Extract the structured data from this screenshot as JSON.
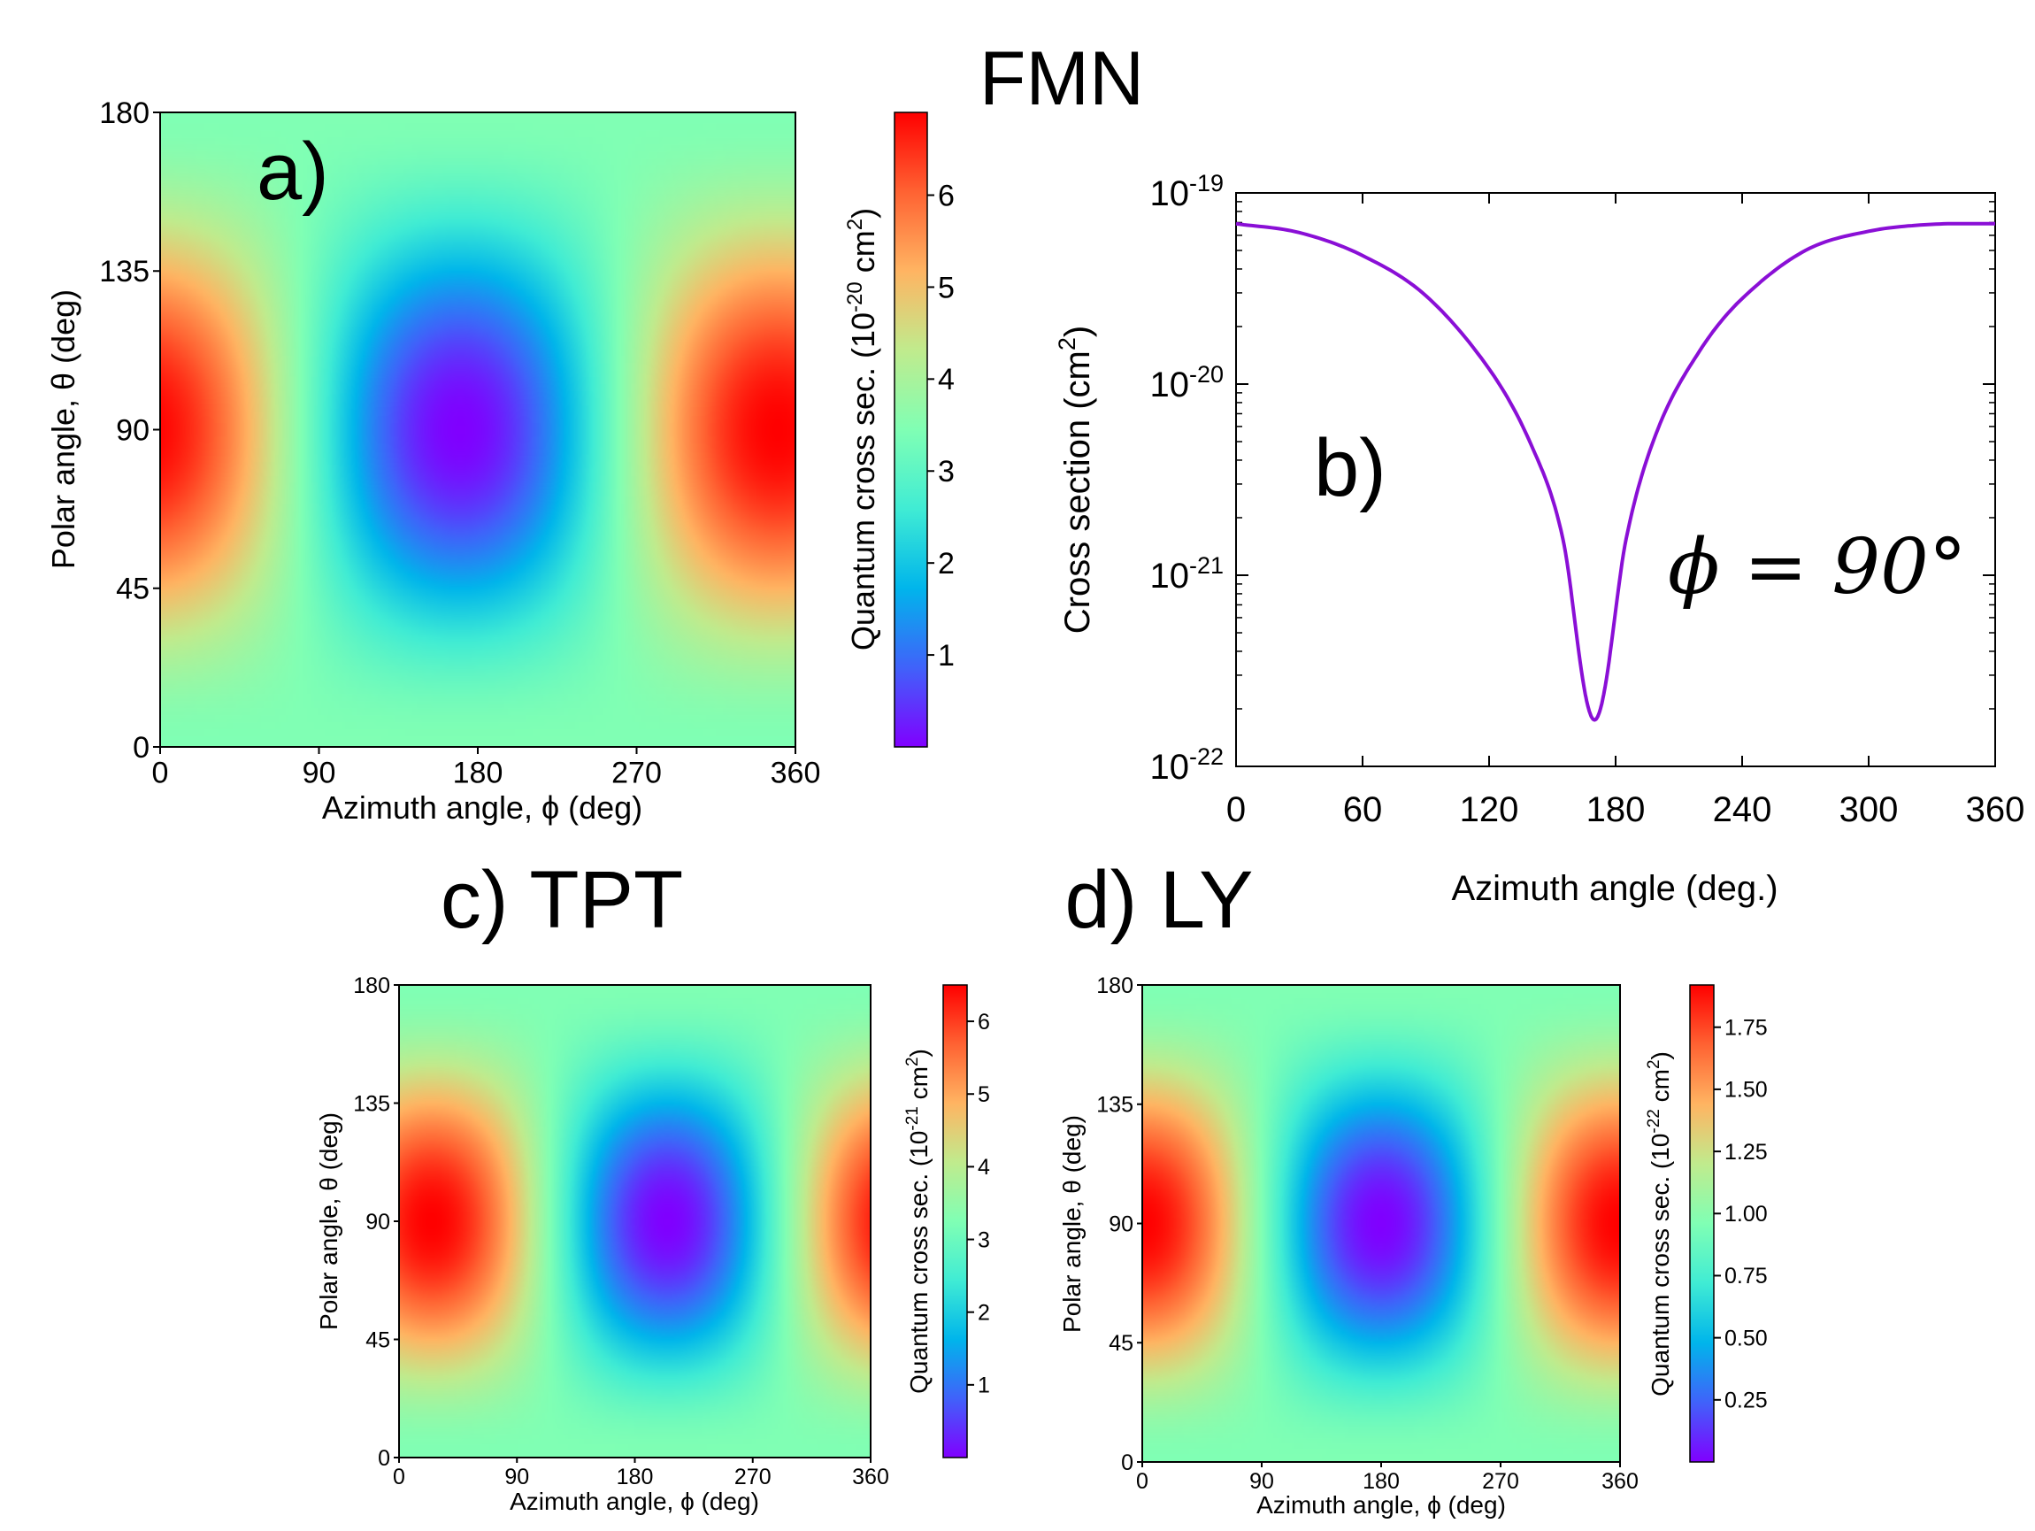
{
  "figure": {
    "main_title": "FMN"
  },
  "chart_data": [
    {
      "id": "a",
      "type": "heatmap",
      "panel_label": "a)",
      "title": "",
      "xlabel": "Azimuth angle, ϕ (deg)",
      "ylabel": "Polar angle, θ (deg)",
      "xlim": [
        0,
        360
      ],
      "ylim": [
        0,
        180
      ],
      "xticks": [
        0,
        90,
        180,
        270,
        360
      ],
      "yticks": [
        0,
        45,
        90,
        135,
        180
      ],
      "colorbar": {
        "label_main": "Quantum cross sec. (10",
        "label_exp": "-20",
        "label_mid": " cm",
        "label_exp2": "2",
        "label_end": ")",
        "range": [
          0,
          6.9
        ],
        "ticks": [
          "1",
          "2",
          "3",
          "4",
          "5",
          "6"
        ],
        "tick_values": [
          1,
          2,
          3,
          4,
          5,
          6
        ]
      },
      "model": {
        "min_phi": 170,
        "min_theta": 90,
        "max_value": 6.9,
        "baseline": 3.45
      }
    },
    {
      "id": "b",
      "type": "line",
      "panel_label": "b)",
      "annotation": "ϕ = 90°",
      "xlabel": "Azimuth angle (deg.)",
      "ylabel_main": "Cross section (cm",
      "ylabel_exp": "2",
      "ylabel_end": ")",
      "xlim": [
        0,
        360
      ],
      "ylim": [
        1e-22,
        1e-19
      ],
      "yscale": "log",
      "xticks": [
        "0",
        "60",
        "120",
        "180",
        "240",
        "300",
        "360"
      ],
      "xtick_values": [
        0,
        60,
        120,
        180,
        240,
        300,
        360
      ],
      "yticks": [
        {
          "base": "10",
          "exp": "-22",
          "value": -22
        },
        {
          "base": "10",
          "exp": "-21",
          "value": -21
        },
        {
          "base": "10",
          "exp": "-20",
          "value": -20
        },
        {
          "base": "10",
          "exp": "-19",
          "value": -19
        }
      ],
      "series": [
        {
          "name": "cross section",
          "color": "#8a0fd6",
          "x": [
            0,
            30,
            60,
            90,
            120,
            140,
            155,
            165,
            170,
            175,
            185,
            200,
            220,
            240,
            270,
            300,
            330,
            360
          ],
          "y": [
            6.9e-20,
            6.2e-20,
            4.7e-20,
            2.9e-20,
            1.2e-20,
            4.8e-21,
            1.55e-21,
            2.6e-22,
            1.75e-22,
            2.6e-22,
            1.55e-21,
            5.8e-21,
            1.5e-20,
            2.8e-20,
            5e-20,
            6.3e-20,
            6.85e-20,
            6.9e-20
          ]
        }
      ]
    },
    {
      "id": "c",
      "type": "heatmap",
      "title": "c) TPT",
      "xlabel": "Azimuth angle, ϕ (deg)",
      "ylabel": "Polar angle, θ (deg)",
      "xlim": [
        0,
        360
      ],
      "ylim": [
        0,
        180
      ],
      "xticks": [
        0,
        90,
        180,
        270,
        360
      ],
      "yticks": [
        0,
        45,
        90,
        135,
        180
      ],
      "colorbar": {
        "label_main": "Quantum cross sec. (10",
        "label_exp": "-21",
        "label_mid": " cm",
        "label_exp2": "2",
        "label_end": ")",
        "range": [
          0,
          6.5
        ],
        "ticks": [
          "1",
          "2",
          "3",
          "4",
          "5",
          "6"
        ],
        "tick_values": [
          1,
          2,
          3,
          4,
          5,
          6
        ]
      },
      "model": {
        "min_phi": 205,
        "min_theta": 90,
        "max_value": 6.5,
        "baseline": 3.25
      }
    },
    {
      "id": "d",
      "type": "heatmap",
      "title": "d) LY",
      "xlabel": "Azimuth angle, ϕ (deg)",
      "ylabel": "Polar angle, θ (deg)",
      "xlim": [
        0,
        360
      ],
      "ylim": [
        0,
        180
      ],
      "xticks": [
        0,
        90,
        180,
        270,
        360
      ],
      "yticks": [
        0,
        45,
        90,
        135,
        180
      ],
      "colorbar": {
        "label_main": "Quantum cross sec. (10",
        "label_exp": "-22",
        "label_mid": " cm",
        "label_exp2": "2",
        "label_end": ")",
        "range": [
          0,
          1.92
        ],
        "ticks": [
          "0.25",
          "0.50",
          "0.75",
          "1.00",
          "1.25",
          "1.50",
          "1.75"
        ],
        "tick_values": [
          0.25,
          0.5,
          0.75,
          1.0,
          1.25,
          1.5,
          1.75
        ]
      },
      "model": {
        "min_phi": 180,
        "min_theta": 90,
        "max_value": 1.92,
        "baseline": 0.96
      }
    }
  ]
}
